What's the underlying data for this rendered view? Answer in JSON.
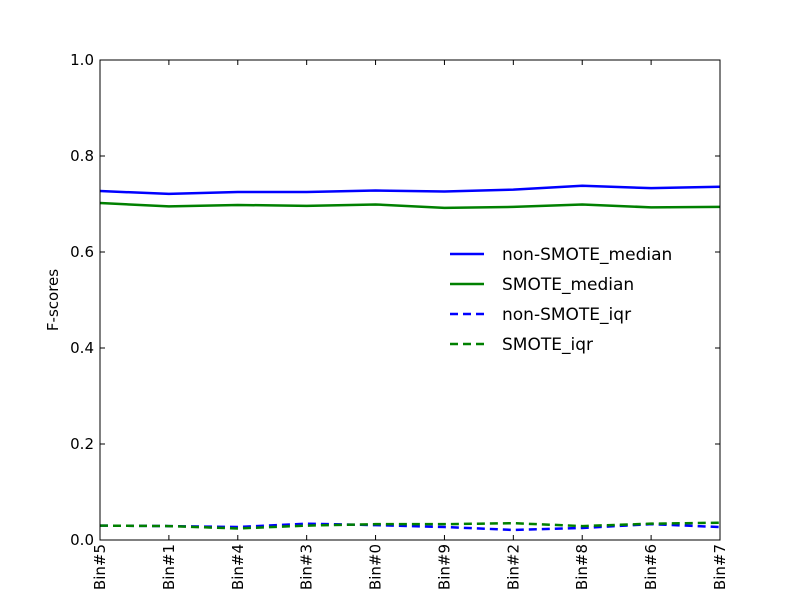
{
  "chart_data": {
    "type": "line",
    "title": "",
    "xlabel": "",
    "ylabel": "F-scores",
    "categories": [
      "Bin#5",
      "Bin#1",
      "Bin#4",
      "Bin#3",
      "Bin#0",
      "Bin#9",
      "Bin#2",
      "Bin#8",
      "Bin#6",
      "Bin#7"
    ],
    "ylim": [
      0.0,
      1.0
    ],
    "yticks": [
      "0.0",
      "0.2",
      "0.4",
      "0.6",
      "0.8",
      "1.0"
    ],
    "grid": false,
    "legend_position": "center-right",
    "series": [
      {
        "name": "non-SMOTE_median",
        "color": "#0000ff",
        "style": "solid",
        "values": [
          0.727,
          0.721,
          0.725,
          0.725,
          0.728,
          0.726,
          0.73,
          0.738,
          0.733,
          0.736
        ]
      },
      {
        "name": "SMOTE_median",
        "color": "#008000",
        "style": "solid",
        "values": [
          0.702,
          0.695,
          0.698,
          0.696,
          0.699,
          0.692,
          0.694,
          0.699,
          0.693,
          0.694
        ]
      },
      {
        "name": "non-SMOTE_iqr",
        "color": "#0000ff",
        "style": "dashed",
        "values": [
          0.03,
          0.029,
          0.027,
          0.034,
          0.031,
          0.027,
          0.021,
          0.025,
          0.033,
          0.027
        ]
      },
      {
        "name": "SMOTE_iqr",
        "color": "#008000",
        "style": "dashed",
        "values": [
          0.03,
          0.029,
          0.024,
          0.03,
          0.033,
          0.033,
          0.035,
          0.029,
          0.034,
          0.036
        ]
      }
    ]
  }
}
